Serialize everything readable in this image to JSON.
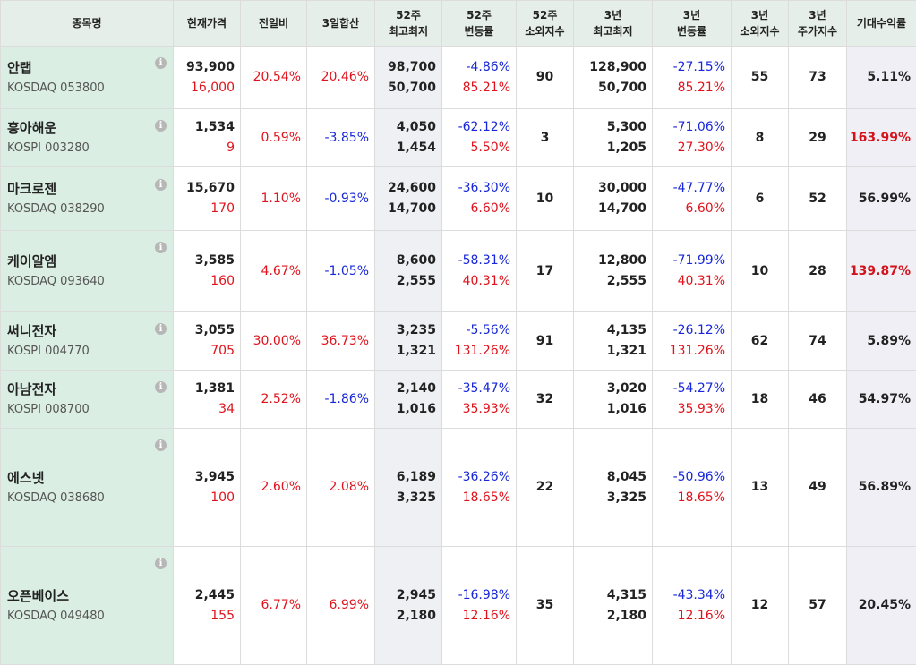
{
  "headers": [
    "종목명",
    "현재가격",
    "전일비",
    "3일합산",
    "52주\n최고최저",
    "52주\n변동률",
    "52주\n소외지수",
    "3년\n최고최저",
    "3년\n변동률",
    "3년\n소외지수",
    "3년\n주가지수",
    "기대수익률"
  ],
  "header_lines": [
    [
      "종목명"
    ],
    [
      "현재가격"
    ],
    [
      "전일비"
    ],
    [
      "3일합산"
    ],
    [
      "52주",
      "최고최저"
    ],
    [
      "52주",
      "변동률"
    ],
    [
      "52주",
      "소외지수"
    ],
    [
      "3년",
      "최고최저"
    ],
    [
      "3년",
      "변동률"
    ],
    [
      "3년",
      "소외지수"
    ],
    [
      "3년",
      "주가지수"
    ],
    [
      "기대수익률"
    ]
  ],
  "info_glyph": "i",
  "rows": [
    {
      "name": "안랩",
      "code": "KOSDAQ 053800",
      "price": "93,900",
      "change": "16,000",
      "day_pct": "20.54%",
      "three_day": "20.46%",
      "w52_high": "98,700",
      "w52_low": "50,700",
      "w52_down": "-4.86%",
      "w52_up": "85.21%",
      "w52_idx": "90",
      "y3_high": "128,900",
      "y3_low": "50,700",
      "y3_down": "-27.15%",
      "y3_up": "85.21%",
      "y3_idx": "55",
      "y3_price_idx": "73",
      "expected": "5.11%"
    },
    {
      "name": "흥아해운",
      "code": "KOSPI 003280",
      "price": "1,534",
      "change": "9",
      "day_pct": "0.59%",
      "three_day": "-3.85%",
      "w52_high": "4,050",
      "w52_low": "1,454",
      "w52_down": "-62.12%",
      "w52_up": "5.50%",
      "w52_idx": "3",
      "y3_high": "5,300",
      "y3_low": "1,205",
      "y3_down": "-71.06%",
      "y3_up": "27.30%",
      "y3_idx": "8",
      "y3_price_idx": "29",
      "expected": "163.99%"
    },
    {
      "name": "마크로젠",
      "code": "KOSDAQ 038290",
      "price": "15,670",
      "change": "170",
      "day_pct": "1.10%",
      "three_day": "-0.93%",
      "w52_high": "24,600",
      "w52_low": "14,700",
      "w52_down": "-36.30%",
      "w52_up": "6.60%",
      "w52_idx": "10",
      "y3_high": "30,000",
      "y3_low": "14,700",
      "y3_down": "-47.77%",
      "y3_up": "6.60%",
      "y3_idx": "6",
      "y3_price_idx": "52",
      "expected": "56.99%"
    },
    {
      "name": "케이알엠",
      "code": "KOSDAQ 093640",
      "price": "3,585",
      "change": "160",
      "day_pct": "4.67%",
      "three_day": "-1.05%",
      "w52_high": "8,600",
      "w52_low": "2,555",
      "w52_down": "-58.31%",
      "w52_up": "40.31%",
      "w52_idx": "17",
      "y3_high": "12,800",
      "y3_low": "2,555",
      "y3_down": "-71.99%",
      "y3_up": "40.31%",
      "y3_idx": "10",
      "y3_price_idx": "28",
      "expected": "139.87%"
    },
    {
      "name": "써니전자",
      "code": "KOSPI 004770",
      "price": "3,055",
      "change": "705",
      "day_pct": "30.00%",
      "three_day": "36.73%",
      "w52_high": "3,235",
      "w52_low": "1,321",
      "w52_down": "-5.56%",
      "w52_up": "131.26%",
      "w52_idx": "91",
      "y3_high": "4,135",
      "y3_low": "1,321",
      "y3_down": "-26.12%",
      "y3_up": "131.26%",
      "y3_idx": "62",
      "y3_price_idx": "74",
      "expected": "5.89%"
    },
    {
      "name": "아남전자",
      "code": "KOSPI 008700",
      "price": "1,381",
      "change": "34",
      "day_pct": "2.52%",
      "three_day": "-1.86%",
      "w52_high": "2,140",
      "w52_low": "1,016",
      "w52_down": "-35.47%",
      "w52_up": "35.93%",
      "w52_idx": "32",
      "y3_high": "3,020",
      "y3_low": "1,016",
      "y3_down": "-54.27%",
      "y3_up": "35.93%",
      "y3_idx": "18",
      "y3_price_idx": "46",
      "expected": "54.97%"
    },
    {
      "name": "에스넷",
      "code": "KOSDAQ 038680",
      "price": "3,945",
      "change": "100",
      "day_pct": "2.60%",
      "three_day": "2.08%",
      "w52_high": "6,189",
      "w52_low": "3,325",
      "w52_down": "-36.26%",
      "w52_up": "18.65%",
      "w52_idx": "22",
      "y3_high": "8,045",
      "y3_low": "3,325",
      "y3_down": "-50.96%",
      "y3_up": "18.65%",
      "y3_idx": "13",
      "y3_price_idx": "49",
      "expected": "56.89%"
    },
    {
      "name": "오픈베이스",
      "code": "KOSDAQ 049480",
      "price": "2,445",
      "change": "155",
      "day_pct": "6.77%",
      "three_day": "6.99%",
      "w52_high": "2,945",
      "w52_low": "2,180",
      "w52_down": "-16.98%",
      "w52_up": "12.16%",
      "w52_idx": "35",
      "y3_high": "4,315",
      "y3_low": "2,180",
      "y3_down": "-43.34%",
      "y3_up": "12.16%",
      "y3_idx": "12",
      "y3_price_idx": "57",
      "expected": "20.45%"
    }
  ],
  "colors": {
    "up": "#e0131c",
    "down": "#1727d9",
    "name_bg": "#dbeee3",
    "header_bg": "#e6eee9",
    "range_bg": "#eff0f4",
    "expected_bg": "#efeff5",
    "highlight": "#d4121b"
  }
}
